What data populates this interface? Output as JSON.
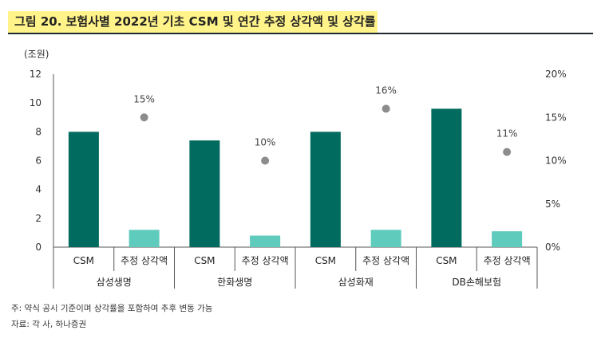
{
  "title": "그림 20. 보험사별 2022년 기초 CSM 및 연간 추정 상각액 및 상각률",
  "chart_data": {
    "type": "bar",
    "unit_left": "(조원)",
    "groups": [
      "삼성생명",
      "한화생명",
      "삼성화재",
      "DB손해보험"
    ],
    "subcategories": [
      "CSM",
      "추정 상각액"
    ],
    "series": [
      {
        "name": "CSM",
        "color": "#006b5e",
        "values": [
          8.0,
          7.4,
          8.0,
          9.6
        ]
      },
      {
        "name": "추정 상각액",
        "color": "#5ecbbd",
        "values": [
          1.2,
          0.8,
          1.2,
          1.1
        ]
      }
    ],
    "rate": {
      "values": [
        15,
        10,
        16,
        11
      ],
      "labels": [
        "15%",
        "10%",
        "16%",
        "11%"
      ],
      "color": "#8c8c8c"
    },
    "y_left": {
      "min": 0,
      "max": 12,
      "ticks": [
        "0",
        "2",
        "4",
        "6",
        "8",
        "10",
        "12"
      ]
    },
    "y_right": {
      "min": 0,
      "max": 20,
      "ticks": [
        "0%",
        "5%",
        "10%",
        "15%",
        "20%"
      ]
    }
  },
  "notes": {
    "note": "주: 약식 공시 기준이며 상각률을 포함하여 추후 변동 가능",
    "source": "자료: 각 사, 하나증권"
  }
}
